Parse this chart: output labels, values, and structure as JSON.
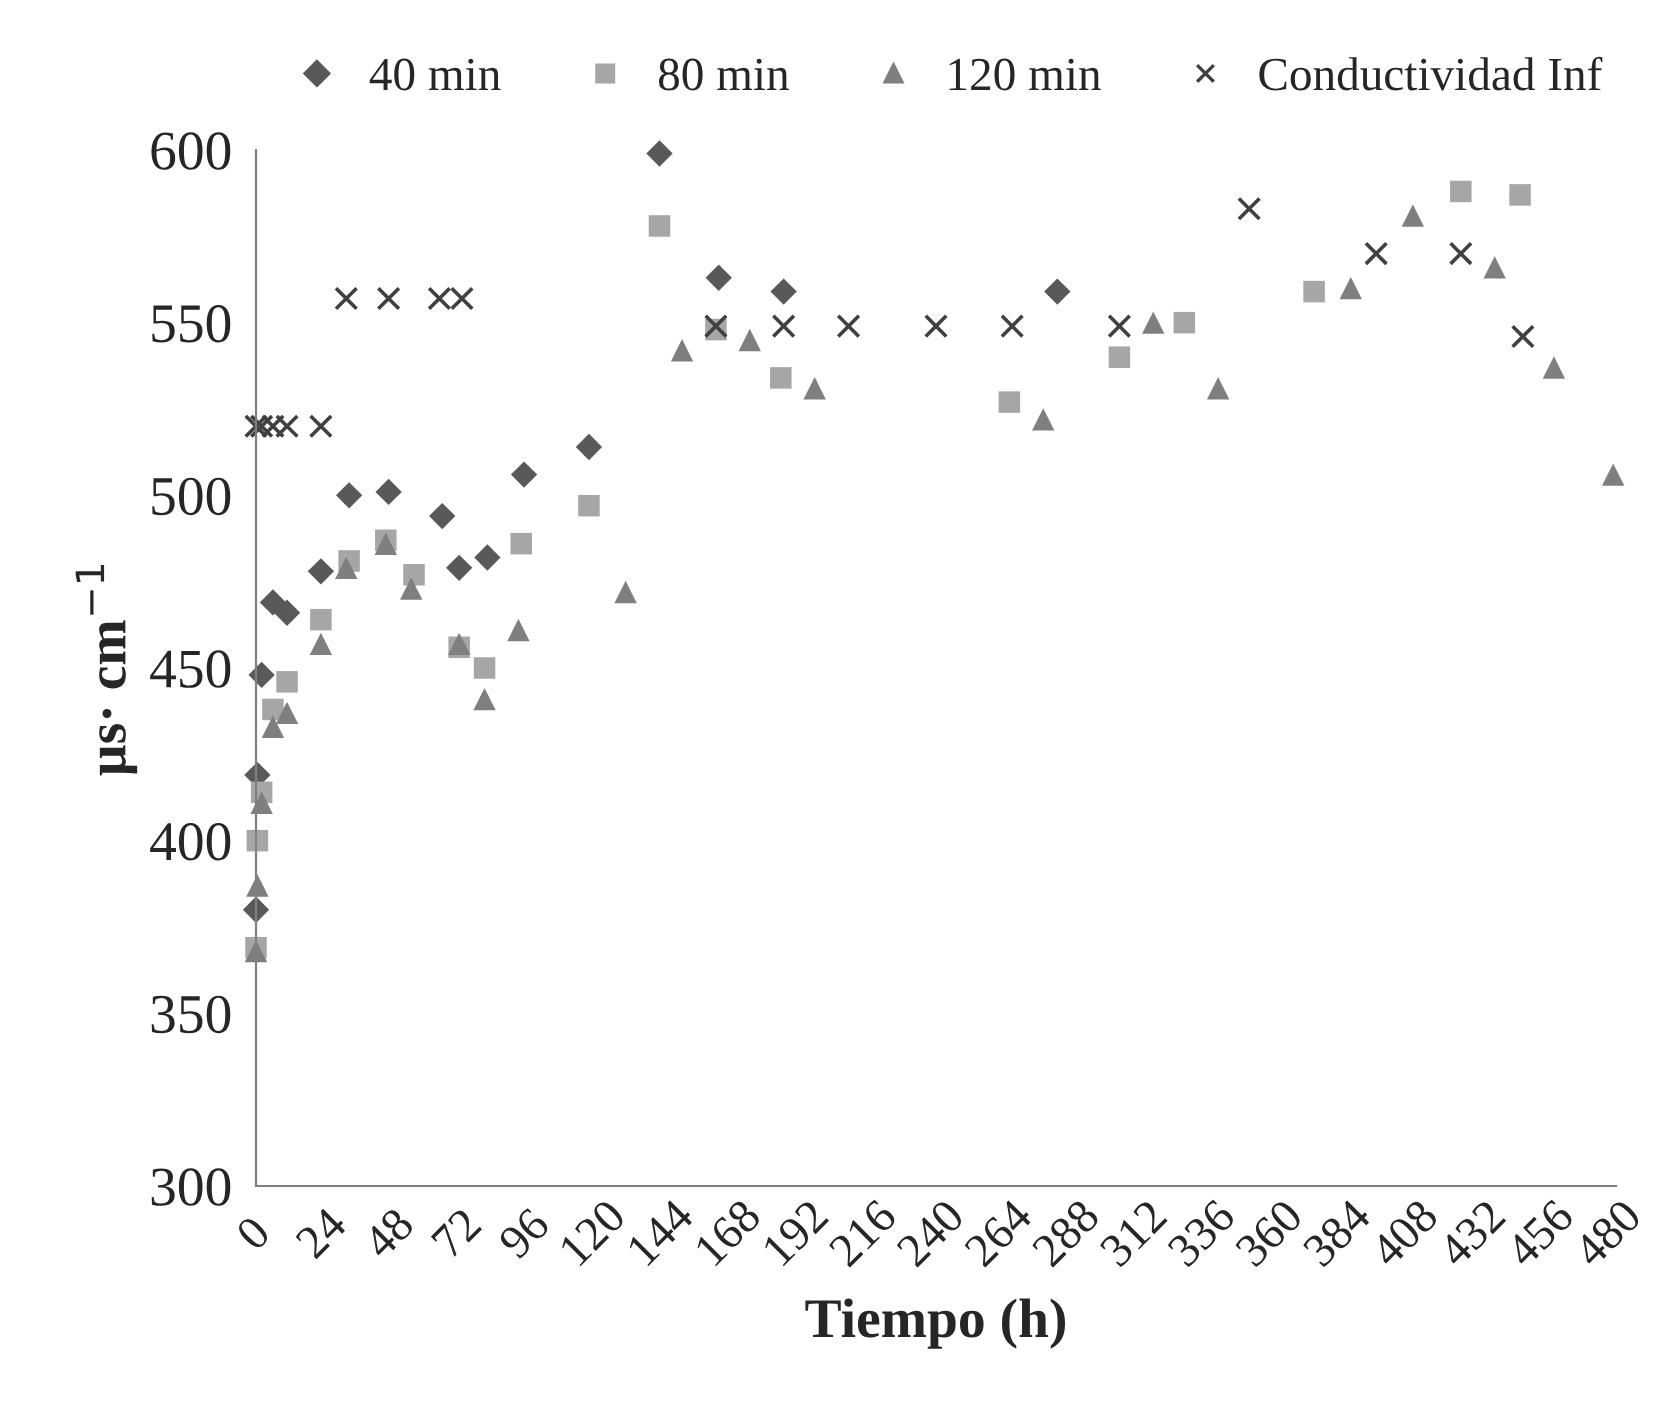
{
  "chart_data": {
    "type": "scatter",
    "xlabel": "Tiempo (h)",
    "ylabel": "µs· cm$^{−1}$",
    "xlim": [
      0,
      482
    ],
    "xticks": [
      0,
      24,
      48,
      72,
      96,
      120,
      144,
      168,
      192,
      216,
      240,
      264,
      288,
      312,
      336,
      360,
      384,
      408,
      432,
      456,
      480
    ],
    "ylim": [
      300,
      600
    ],
    "yticks": [
      300,
      350,
      400,
      450,
      500,
      550,
      600
    ],
    "grid": false,
    "legend": "top",
    "series": [
      {
        "name": "40 min",
        "color": "#595959",
        "marker": "diamond",
        "x": [
          0,
          0.5,
          2,
          6,
          11,
          23,
          33,
          47,
          66,
          72,
          82,
          95,
          118,
          143,
          164,
          187,
          284
        ],
        "values": [
          380,
          419,
          448,
          469,
          466,
          478,
          500,
          501,
          494,
          479,
          482,
          506,
          514,
          599,
          563,
          559,
          559
        ]
      },
      {
        "name": "80 min",
        "color": "#a6a6a6",
        "marker": "square",
        "x": [
          0,
          0.5,
          2,
          6,
          11,
          23,
          33,
          46,
          56,
          72,
          81,
          94,
          118,
          143,
          163,
          186,
          267,
          306,
          329,
          375,
          427,
          448
        ],
        "values": [
          369,
          400,
          414,
          438,
          446,
          464,
          481,
          487,
          477,
          456,
          450,
          486,
          497,
          578,
          548,
          534,
          527,
          540,
          550,
          559,
          588,
          587
        ]
      },
      {
        "name": "120 min",
        "color": "#7f7f7f",
        "marker": "triangle",
        "x": [
          0,
          0.5,
          2,
          6,
          11,
          23,
          32,
          46,
          55,
          72,
          81,
          93,
          131,
          151,
          175,
          198,
          279,
          318,
          341,
          388,
          410,
          439,
          460,
          481
        ],
        "values": [
          368,
          387,
          411,
          433,
          437,
          457,
          479,
          486,
          473,
          457,
          441,
          461,
          472,
          542,
          545,
          531,
          522,
          550,
          531,
          560,
          581,
          566,
          537,
          506
        ]
      },
      {
        "name": "Conductividad Inf",
        "color": "#404040",
        "marker": "cross",
        "x": [
          0,
          2,
          6,
          11,
          23,
          32,
          47,
          65,
          73,
          163,
          187,
          210,
          241,
          268,
          306,
          352,
          397,
          427,
          449
        ],
        "values": [
          520,
          520,
          520,
          520,
          520,
          557,
          557,
          557,
          557,
          549,
          549,
          549,
          549,
          549,
          549,
          583,
          570,
          570,
          546
        ]
      }
    ]
  }
}
